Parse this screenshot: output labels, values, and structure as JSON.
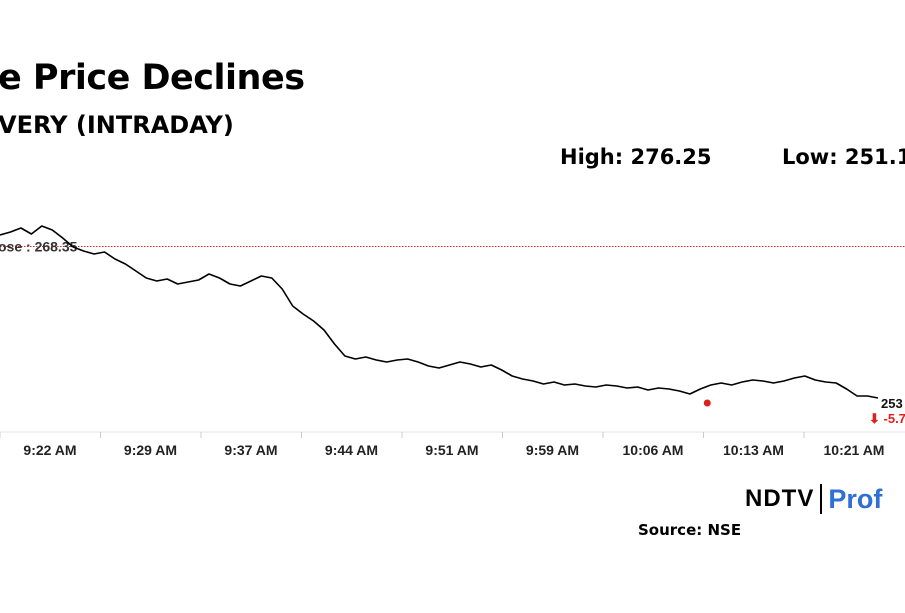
{
  "header": {
    "title": "e Price Declines",
    "subtitle": "VERY (INTRADAY)",
    "high_label": "High: 276.25",
    "low_label": "Low: 251.1"
  },
  "chart_data": {
    "type": "line",
    "x_ticks": [
      "9:22 AM",
      "9:29 AM",
      "9:37 AM",
      "9:44 AM",
      "9:51 AM",
      "9:59 AM",
      "10:06 AM",
      "10:13 AM",
      "10:21 AM"
    ],
    "prev_close_label": "ose : 268.35",
    "prev_close": 268.35,
    "last_label": "253",
    "change_label": "⬇ -5.7",
    "ylim": [
      251.0,
      273.0
    ],
    "grid": false,
    "legend": "none",
    "colors": {
      "line": "#000000",
      "prev_close": "#d62728",
      "marker": "#e0201c"
    },
    "series": [
      {
        "x": [
          0,
          1.5,
          3,
          4.5,
          6,
          7.5,
          9,
          10.5,
          12,
          13.5,
          15,
          16.5,
          18,
          19.5,
          21,
          22.5,
          24,
          25.5,
          27,
          28.5,
          30,
          31.5,
          33,
          34.5,
          36,
          37.5,
          39,
          40.5,
          42,
          43.5,
          45,
          46.5,
          48,
          49.5,
          51,
          52.5,
          54,
          55.5,
          57,
          58.5,
          60,
          61.5,
          63,
          64.5,
          66,
          67.5,
          69,
          70.5,
          72,
          73.5,
          75,
          76.5,
          78,
          79.5,
          81,
          82.5,
          84,
          85.5,
          87,
          88.5,
          90,
          91.5,
          93,
          94.5,
          96,
          97.5,
          99,
          100.5,
          102,
          103.5,
          105,
          106.5,
          108,
          109.5,
          111,
          112.5,
          114,
          115.5,
          117,
          118.5,
          120,
          121.5,
          123,
          124.5,
          126
        ],
        "values": [
          269.5,
          269.8,
          270.2,
          269.6,
          270.4,
          270.0,
          269.2,
          268.3,
          267.9,
          267.6,
          267.8,
          267.1,
          266.6,
          265.9,
          265.2,
          264.9,
          265.1,
          264.6,
          264.8,
          265.0,
          265.6,
          265.2,
          264.6,
          264.4,
          264.9,
          265.4,
          265.2,
          264.1,
          262.4,
          261.6,
          260.9,
          260.0,
          258.6,
          257.4,
          257.1,
          257.3,
          257.0,
          256.8,
          257.0,
          257.1,
          256.8,
          256.4,
          256.2,
          256.5,
          256.8,
          256.6,
          256.3,
          256.5,
          256.0,
          255.4,
          255.1,
          254.9,
          254.6,
          254.8,
          254.5,
          254.6,
          254.4,
          254.3,
          254.5,
          254.4,
          254.2,
          254.3,
          254.0,
          254.2,
          254.1,
          253.9,
          253.6,
          254.1,
          254.5,
          254.7,
          254.5,
          254.8,
          255.0,
          254.9,
          254.7,
          254.9,
          255.2,
          255.4,
          255.0,
          254.8,
          254.7,
          254.1,
          253.4,
          253.4,
          253.2
        ]
      }
    ],
    "marker_low_x": 101.5,
    "marker_low_value": 252.7
  },
  "branding": {
    "logo_ndtv": "NDTV",
    "logo_profit": "Prof",
    "source": "Source: NSE"
  }
}
